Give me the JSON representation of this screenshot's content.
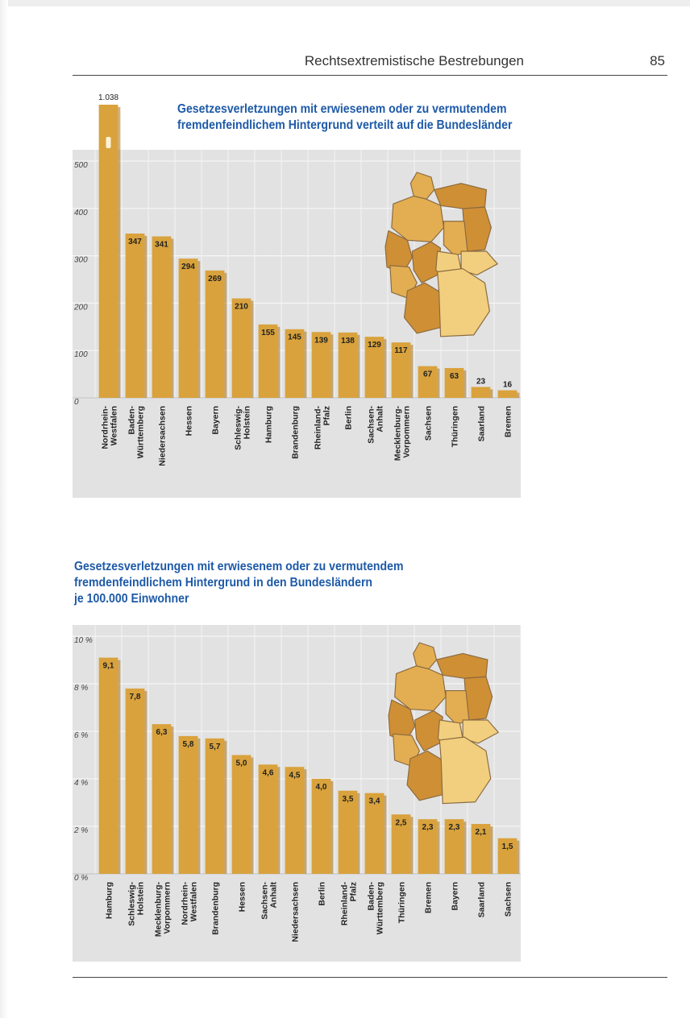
{
  "header": {
    "title": "Rechtsextremistische Bestrebungen",
    "page_number": "85"
  },
  "colors": {
    "bar": "#d9a23c",
    "bar_dark": "#a9741e",
    "plot_bg": "#e2e2e2",
    "title_blue": "#1e5aa8",
    "map_light": "#f2cf7e",
    "map_mid": "#e3ae52",
    "map_dark": "#cf8f35"
  },
  "chart_data": [
    {
      "type": "bar",
      "title_lines": [
        "Gesetzesverletzungen mit erwiesenem oder zu vermutendem",
        "fremdenfeindlichem Hintergrund verteilt auf die Bundesländer"
      ],
      "categories": [
        "Nordrhein-\nWestfalen",
        "Baden-\nWürttemberg",
        "Niedersachsen",
        "Hessen",
        "Bayern",
        "Schleswig-\nHolstein",
        "Hamburg",
        "Brandenburg",
        "Rheinland-\nPfalz",
        "Berlin",
        "Sachsen-\nAnhalt",
        "Mecklenburg-\nVorpommern",
        "Sachsen",
        "Thüringen",
        "Saarland",
        "Bremen"
      ],
      "values": [
        1038,
        347,
        341,
        294,
        269,
        210,
        155,
        145,
        139,
        138,
        129,
        117,
        67,
        63,
        23,
        16
      ],
      "value_labels": [
        "1.038",
        "347",
        "341",
        "294",
        "269",
        "210",
        "155",
        "145",
        "139",
        "138",
        "129",
        "117",
        "67",
        "63",
        "23",
        "16"
      ],
      "y_ticks": [
        "0",
        "100",
        "200",
        "300",
        "400",
        "500"
      ],
      "ylim": [
        0,
        500
      ],
      "grid": true,
      "inset": "Deutschlandkarte mit Bundesländern"
    },
    {
      "type": "bar",
      "title_lines": [
        "Gesetzesverletzungen mit erwiesenem oder zu vermutendem",
        "fremdenfeindlichem Hintergrund in den Bundesländern",
        "je 100.000 Einwohner"
      ],
      "categories": [
        "Hamburg",
        "Schleswig-\nHolstein",
        "Mecklenburg-\nVorpommern",
        "Nordrhein-\nWestfalen",
        "Brandenburg",
        "Hessen",
        "Sachsen-\nAnhalt",
        "Niedersachsen",
        "Berlin",
        "Rheinland-\nPfalz",
        "Baden-\nWürttemberg",
        "Thüringen",
        "Bremen",
        "Bayern",
        "Saarland",
        "Sachsen"
      ],
      "values": [
        9.1,
        7.8,
        6.3,
        5.8,
        5.7,
        5.0,
        4.6,
        4.5,
        4.0,
        3.5,
        3.4,
        2.5,
        2.3,
        2.3,
        2.1,
        1.5
      ],
      "value_labels": [
        "9,1",
        "7,8",
        "6,3",
        "5,8",
        "5,7",
        "5,0",
        "4,6",
        "4,5",
        "4,0",
        "3,5",
        "3,4",
        "2,5",
        "2,3",
        "2,3",
        "2,1",
        "1,5"
      ],
      "y_ticks": [
        "0 %",
        "2 %",
        "4 %",
        "6 %",
        "8 %",
        "10 %"
      ],
      "ylim": [
        0,
        10
      ],
      "grid": true,
      "inset": "Deutschlandkarte mit Bundesländern"
    }
  ]
}
